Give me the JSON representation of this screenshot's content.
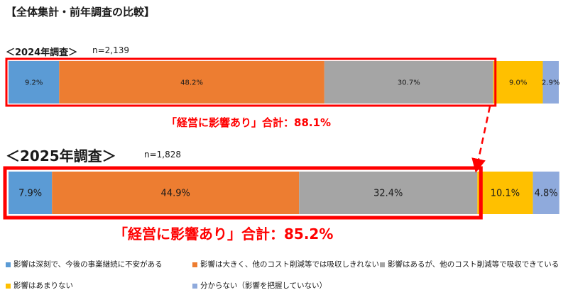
{
  "title": "【全体集計・前年調査の比較】",
  "surveys": [
    {
      "label": "＜2024年調査＞",
      "n": "n=2,139",
      "total_label": "「経営に影響あり」合計：88.1%"
    },
    {
      "label": "＜2025年調査＞",
      "n": "n=1,828",
      "total_label": "「経営に影響あり」合計：85.2%"
    }
  ],
  "chart_data": {
    "type": "bar",
    "orientation": "horizontal",
    "stacked": true,
    "percent": true,
    "categories": [
      "2024年調査",
      "2025年調査"
    ],
    "series": [
      {
        "name": "影響は深刻で、今後の事業継続に不安がある",
        "color": "#5b9bd5",
        "values": [
          9.2,
          7.9
        ],
        "labels": [
          "9.2%",
          "7.9%"
        ]
      },
      {
        "name": "影響は大きく、他のコスト削減等では吸収しきれない",
        "color": "#ed7d31",
        "values": [
          48.2,
          44.9
        ],
        "labels": [
          "48.2%",
          "44.9%"
        ]
      },
      {
        "name": "影響はあるが、他のコスト削減等で吸収できている",
        "color": "#a5a5a5",
        "values": [
          30.7,
          32.4
        ],
        "labels": [
          "30.7%",
          "32.4%"
        ]
      },
      {
        "name": "影響はあまりない",
        "color": "#ffc000",
        "values": [
          9.0,
          10.1
        ],
        "labels": [
          "9.0%",
          "10.1%"
        ]
      },
      {
        "name": "分からない（影響を把握していない）",
        "color": "#8faadc",
        "values": [
          2.9,
          4.8
        ],
        "labels": [
          "2.9%",
          "4.8%"
        ]
      }
    ],
    "highlight_color": "#ff0000"
  }
}
